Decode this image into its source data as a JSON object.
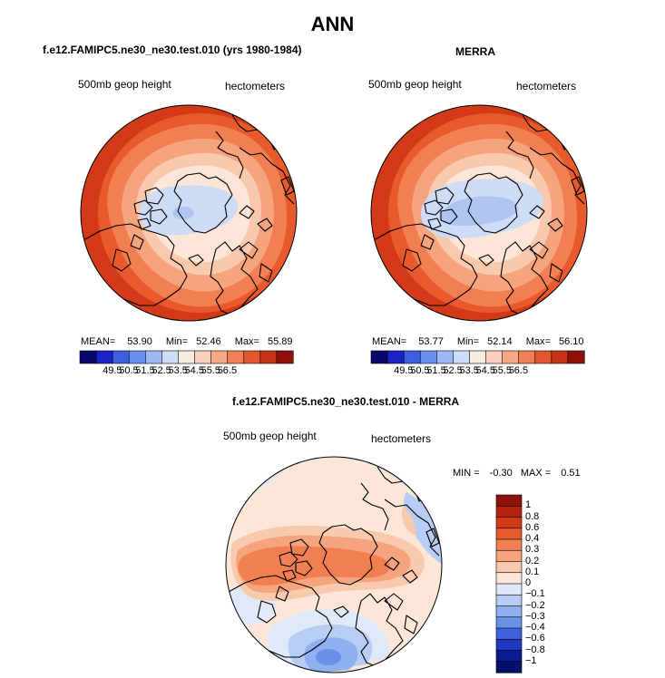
{
  "figure": {
    "title": "ANN"
  },
  "panels": [
    {
      "title": "f.e12.FAMIPC5.ne30_ne30.test.010 (yrs 1980-1984)",
      "variable": "500mb geop height",
      "units": "hectometers",
      "stats": {
        "mean_label": "MEAN=",
        "mean": "53.90",
        "min_label": "Min=",
        "min": "52.46",
        "max_label": "Max=",
        "max": "55.89"
      }
    },
    {
      "title": "MERRA",
      "variable": "500mb geop height",
      "units": "hectometers",
      "stats": {
        "mean_label": "MEAN=",
        "mean": "53.77",
        "min_label": "Min=",
        "min": "52.14",
        "max_label": "Max=",
        "max": "56.10"
      }
    },
    {
      "title": "f.e12.FAMIPC5.ne30_ne30.test.010 - MERRA",
      "variable": "500mb geop height",
      "units": "hectometers",
      "stats": {
        "min_label": "MIN =",
        "min": "-0.30",
        "max_label": "MAX =",
        "max": "0.51"
      }
    }
  ],
  "colorbars": {
    "absolute": {
      "labels": [
        "49.5",
        "50.5",
        "51.5",
        "52.5",
        "53.5",
        "54.5",
        "55.5",
        "56.5"
      ],
      "colors": [
        "#08086e",
        "#1a23c6",
        "#3d5ee0",
        "#6b8ff0",
        "#9fb8f5",
        "#cddcf8",
        "#f6ecdf",
        "#f9d0bb",
        "#f6a985",
        "#ee7f56",
        "#e0562f",
        "#c6341a",
        "#8e1208"
      ]
    },
    "difference": {
      "labels": [
        "1",
        "0.8",
        "0.6",
        "0.4",
        "0.3",
        "0.2",
        "0.1",
        "0",
        "−0.1",
        "−0.2",
        "−0.3",
        "−0.4",
        "−0.6",
        "−0.8",
        "−1"
      ],
      "colors": [
        "#8e1208",
        "#b3220e",
        "#d33a18",
        "#e85a2c",
        "#f17f52",
        "#f6a47e",
        "#f9c9ad",
        "#fbe6d7",
        "#dfe9fa",
        "#b8cdf4",
        "#8fb0ee",
        "#6a91e7",
        "#3f63dd",
        "#1e38c0",
        "#0c1a93",
        "#060f6a"
      ]
    }
  },
  "map": {
    "colors": {
      "ring0": "#d33a18",
      "ring1": "#e85a2c",
      "ring2": "#f17f52",
      "ring3": "#f6a47e",
      "ring4": "#f9c9ad",
      "ring5": "#fbe6d7",
      "blue1": "#cfdcf7",
      "blue2": "#afc4f0",
      "diff_base": "#fbe6d7",
      "diff_pos1": "#f9c9ad",
      "diff_pos2": "#f6a47e",
      "diff_pos3": "#f17f52",
      "diff_neg1": "#dfe9fa",
      "diff_neg2": "#b8cdf4",
      "diff_neg3": "#8fb0ee",
      "diff_neg4": "#6a91e7"
    }
  }
}
